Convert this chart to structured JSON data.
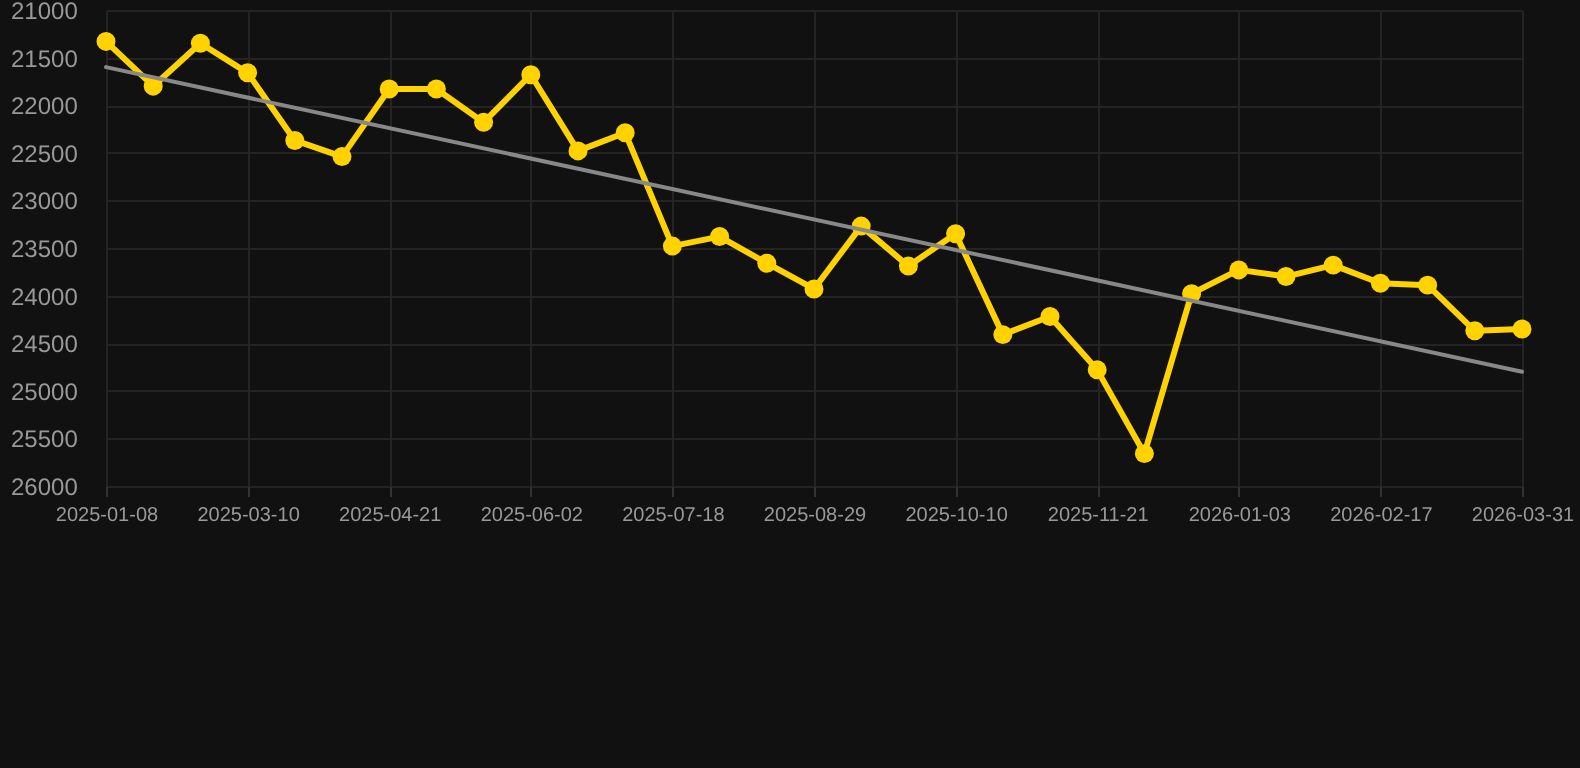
{
  "chart_data": {
    "type": "line",
    "categories": [
      "2025-01-08",
      null,
      null,
      "2025-03-10",
      null,
      null,
      "2025-04-21",
      null,
      null,
      "2025-06-02",
      null,
      null,
      "2025-07-18",
      null,
      null,
      "2025-08-29",
      null,
      null,
      "2025-10-10",
      null,
      null,
      "2025-11-21",
      null,
      null,
      "2026-01-03",
      null,
      null,
      "2026-02-17",
      null,
      null,
      "2026-03-31"
    ],
    "series": [
      {
        "color": "#ffd200",
        "marker": "circle",
        "values": [
          21330,
          21800,
          21350,
          21660,
          22370,
          22540,
          21830,
          21830,
          22180,
          21680,
          22480,
          22290,
          23480,
          23380,
          23660,
          23930,
          23270,
          23690,
          23350,
          24410,
          24220,
          24780,
          25660,
          23980,
          23730,
          23800,
          23680,
          23870,
          23890,
          24370,
          24350
        ]
      },
      {
        "type": "line",
        "color": "#888888",
        "marker": "none",
        "values": [
          21600,
          null,
          null,
          null,
          null,
          null,
          null,
          null,
          null,
          null,
          null,
          null,
          null,
          null,
          null,
          null,
          null,
          null,
          null,
          null,
          null,
          null,
          null,
          null,
          null,
          null,
          null,
          null,
          null,
          null,
          24800
        ]
      }
    ],
    "ylim": [
      26000,
      21000
    ],
    "yticks": [
      21000,
      21500,
      22000,
      22500,
      23000,
      23500,
      24000,
      24500,
      25000,
      25500,
      26000
    ],
    "grid": true
  }
}
